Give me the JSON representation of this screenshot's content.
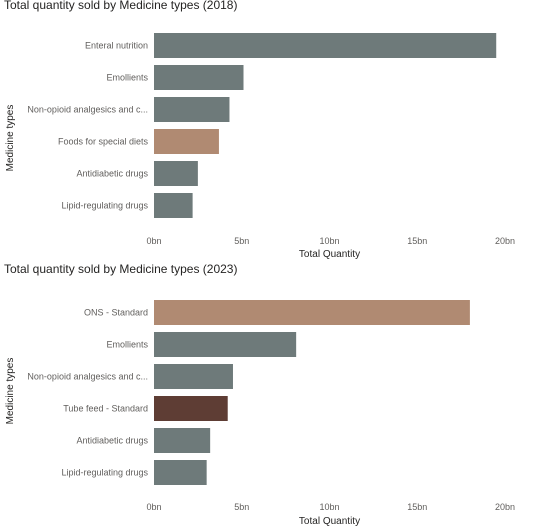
{
  "chart_data": [
    {
      "type": "bar",
      "orientation": "horizontal",
      "title": "Total quantity sold by Medicine types (2018)",
      "xlabel": "Total Quantity",
      "ylabel": "Medicine types",
      "xlim": [
        0,
        20
      ],
      "x_ticks": [
        "0bn",
        "5bn",
        "10bn",
        "15bn",
        "20bn"
      ],
      "categories": [
        "Enteral nutrition",
        "Emollients",
        "Non-opioid analgesics and c...",
        "Foods for special diets",
        "Antidiabetic drugs",
        "Lipid-regulating drugs"
      ],
      "values": [
        19.5,
        5.1,
        4.3,
        3.7,
        2.5,
        2.2
      ],
      "unit": "bn",
      "colors": [
        "#6e7a7a",
        "#6e7a7a",
        "#6e7a7a",
        "#b08a72",
        "#6e7a7a",
        "#6e7a7a"
      ],
      "grid": false
    },
    {
      "type": "bar",
      "orientation": "horizontal",
      "title": "Total quantity sold by Medicine types (2023)",
      "xlabel": "Total Quantity",
      "ylabel": "Medicine types",
      "xlim": [
        0,
        20
      ],
      "x_ticks": [
        "0bn",
        "5bn",
        "10bn",
        "15bn",
        "20bn"
      ],
      "categories": [
        "ONS - Standard",
        "Emollients",
        "Non-opioid analgesics and c...",
        "Tube feed - Standard",
        "Antidiabetic drugs",
        "Lipid-regulating drugs"
      ],
      "values": [
        18.0,
        8.1,
        4.5,
        4.2,
        3.2,
        3.0
      ],
      "unit": "bn",
      "colors": [
        "#b08a72",
        "#6e7a7a",
        "#6e7a7a",
        "#5e3d34",
        "#6e7a7a",
        "#6e7a7a"
      ],
      "grid": false
    }
  ]
}
